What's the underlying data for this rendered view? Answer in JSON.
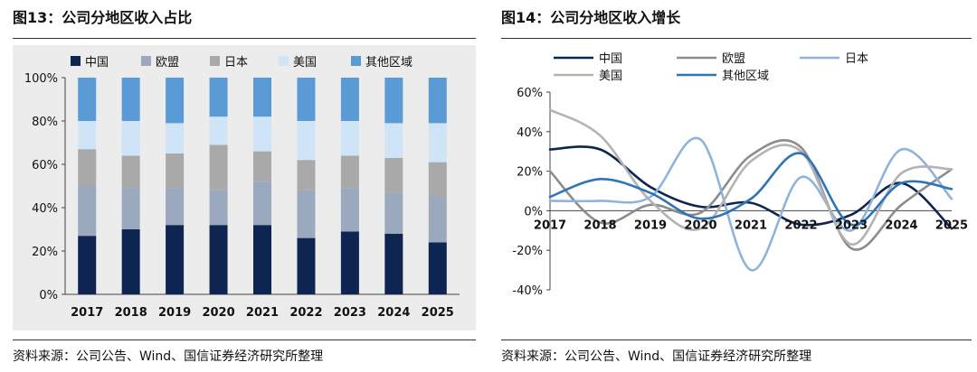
{
  "left": {
    "title": "图13：公司分地区收入占比",
    "source": "资料来源：公司公告、Wind、国信证券经济研究所整理",
    "chart_data": {
      "type": "bar",
      "stacked": true,
      "categories": [
        "2017",
        "2018",
        "2019",
        "2020",
        "2021",
        "2022",
        "2023",
        "2024",
        "2025"
      ],
      "series": [
        {
          "name": "中国",
          "color": "#0d2550",
          "values": [
            27,
            30,
            32,
            32,
            32,
            26,
            29,
            28,
            24
          ]
        },
        {
          "name": "欧盟",
          "color": "#9aa9bd",
          "values": [
            23,
            19,
            17,
            16,
            20,
            22,
            20,
            19,
            21
          ]
        },
        {
          "name": "日本",
          "color": "#a9a9a9",
          "values": [
            17,
            15,
            16,
            21,
            14,
            14,
            15,
            16,
            16
          ]
        },
        {
          "name": "美国",
          "color": "#cfe4f7",
          "values": [
            13,
            16,
            14,
            13,
            16,
            18,
            16,
            16,
            18
          ]
        },
        {
          "name": "其他区域",
          "color": "#5b9bd5",
          "values": [
            20,
            20,
            21,
            18,
            18,
            20,
            20,
            21,
            21
          ]
        }
      ],
      "ylim": [
        0,
        100
      ],
      "yticks": [
        "0%",
        "20%",
        "40%",
        "60%",
        "80%",
        "100%"
      ],
      "legend": "top"
    }
  },
  "right": {
    "title": "图14：公司分地区收入增长",
    "source": "资料来源：公司公告、Wind、国信证券经济研究所整理",
    "chart_data": {
      "type": "line",
      "smooth": true,
      "categories": [
        "2017",
        "2018",
        "2019",
        "2020",
        "2021",
        "2022",
        "2023",
        "2024",
        "2025"
      ],
      "series": [
        {
          "name": "中国",
          "color": "#0d2550",
          "values": [
            31,
            31,
            12,
            2,
            4,
            -7,
            -2,
            14,
            -9
          ]
        },
        {
          "name": "欧盟",
          "color": "#8c8c8c",
          "values": [
            20,
            -6,
            3,
            -1,
            28,
            32,
            -19,
            3,
            21
          ]
        },
        {
          "name": "日本",
          "color": "#8fb4dc",
          "values": [
            5,
            5,
            7,
            36,
            -30,
            17,
            -10,
            31,
            6
          ]
        },
        {
          "name": "美国",
          "color": "#b3b3b3",
          "values": [
            51,
            38,
            5,
            -9,
            25,
            30,
            -17,
            19,
            21
          ]
        },
        {
          "name": "其他区域",
          "color": "#2e75b6",
          "values": [
            7,
            16,
            9,
            -4,
            6,
            29,
            -7,
            14,
            11
          ]
        }
      ],
      "ylim": [
        -40,
        60
      ],
      "yticks": [
        "-40%",
        "-20%",
        "0%",
        "20%",
        "40%",
        "60%"
      ],
      "legend": "top"
    }
  }
}
